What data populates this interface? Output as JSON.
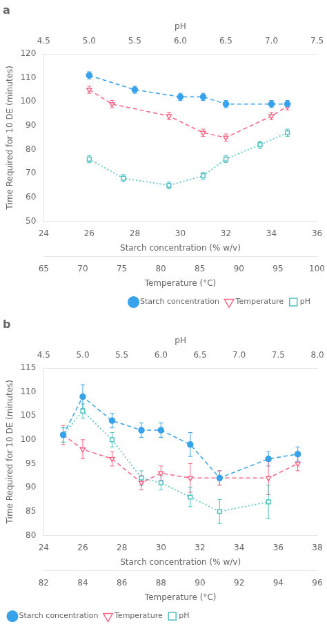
{
  "chart_data": [
    {
      "type": "line",
      "title": "a",
      "xlabel": "Starch concentration (% w/v)",
      "xlim": [
        24,
        36
      ],
      "xticks": [
        24,
        26,
        28,
        30,
        32,
        34,
        36
      ],
      "x2label": "pH",
      "x2lim": [
        4.5,
        7.5
      ],
      "x2ticks": [
        4.5,
        {
          "value": 5.0,
          "label": "5.0"
        },
        5.5,
        {
          "value": 6.0,
          "label": "6.0"
        },
        6.5,
        {
          "value": 7.0,
          "label": "7.0"
        },
        7.5
      ],
      "x3label": "Temperature (°C)",
      "x3lim": [
        65,
        100
      ],
      "x3ticks": [
        65,
        70,
        75,
        80,
        85,
        90,
        95,
        100
      ],
      "ylabel": "Time Required for 10 DE (minutes)",
      "ylim": [
        50,
        120
      ],
      "yticks": [
        50,
        60,
        70,
        80,
        90,
        100,
        110,
        120
      ],
      "grid": false,
      "legend": "lower right",
      "series": [
        {
          "name": "Starch concentration",
          "marker": "circle",
          "line_style": "dashed",
          "x": [
            26.0,
            28.0,
            30.0,
            31.0,
            32.0,
            34.0,
            34.7
          ],
          "values": [
            111,
            105,
            102,
            102,
            99,
            99,
            99
          ],
          "error": [
            1.5,
            1.5,
            1.5,
            1.5,
            1.5,
            1.5,
            1.5
          ]
        },
        {
          "name": "Temperature",
          "marker": "triangle-down-open",
          "line_style": "dashed",
          "x": [
            26.0,
            27.0,
            29.5,
            31.0,
            32.0,
            34.0,
            34.7
          ],
          "values": [
            105,
            99,
            94,
            87,
            85,
            94,
            98
          ],
          "error": [
            1.5,
            1.5,
            1.5,
            1.5,
            1.5,
            1.5,
            1.5
          ]
        },
        {
          "name": "pH",
          "marker": "square-open",
          "line_style": "dotted",
          "x": [
            26.0,
            27.5,
            29.5,
            31.0,
            32.0,
            33.5,
            34.7
          ],
          "values": [
            76,
            68,
            65,
            69,
            76,
            82,
            87
          ],
          "error": [
            1.5,
            1.5,
            1.5,
            1.5,
            1.5,
            1.5,
            1.5
          ]
        }
      ]
    },
    {
      "type": "line",
      "title": "b",
      "xlabel": "Starch concentration (% w/v)",
      "xlim": [
        24,
        38
      ],
      "xticks": [
        24,
        26,
        28,
        30,
        32,
        34,
        36,
        38
      ],
      "x2label": "pH",
      "x2lim": [
        4.5,
        8.0
      ],
      "x2ticks": [
        4.5,
        {
          "value": 5.0,
          "label": "5.0"
        },
        5.5,
        {
          "value": 6.0,
          "label": "6.0"
        },
        6.5,
        {
          "value": 7.0,
          "label": "7.0"
        },
        7.5,
        {
          "value": 8.0,
          "label": "8.0"
        }
      ],
      "x3label": "Temperature (°C)",
      "x3lim": [
        82,
        96
      ],
      "x3ticks": [
        82,
        84,
        86,
        88,
        90,
        92,
        94,
        96
      ],
      "ylabel": "Time Required for 10 DE (minutes)",
      "ylim": [
        80,
        115
      ],
      "yticks": [
        80,
        85,
        90,
        95,
        100,
        105,
        110,
        115
      ],
      "grid": false,
      "legend": "lower left",
      "series": [
        {
          "name": "Starch concentration",
          "marker": "circle",
          "line_style": "dashed",
          "x": [
            25.0,
            26.0,
            27.5,
            29.0,
            30.0,
            31.5,
            33.0,
            35.5,
            37.0
          ],
          "values": [
            101,
            109,
            104,
            102,
            102,
            99,
            92,
            96,
            97
          ],
          "error": [
            1.5,
            2.5,
            1.5,
            1.5,
            1.5,
            2.5,
            1.5,
            1.5,
            1.5
          ]
        },
        {
          "name": "Temperature",
          "marker": "triangle-down-open",
          "line_style": "dashed",
          "x": [
            25.0,
            26.0,
            27.5,
            29.0,
            30.0,
            31.5,
            33.0,
            35.5,
            37.0
          ],
          "values": [
            101,
            98,
            96,
            91,
            93,
            92,
            92,
            92,
            95
          ],
          "error": [
            2.0,
            2.0,
            1.5,
            1.5,
            1.5,
            3.0,
            1.5,
            3.5,
            1.5
          ]
        },
        {
          "name": "pH",
          "marker": "square-open",
          "line_style": "dotted",
          "x": [
            25.0,
            26.0,
            27.5,
            29.0,
            30.0,
            31.5,
            33.0,
            35.5
          ],
          "values": [
            101,
            106,
            100,
            92,
            91,
            88,
            85,
            87
          ],
          "error": [
            1.5,
            1.5,
            1.5,
            1.5,
            1.5,
            2.0,
            2.5,
            3.5
          ]
        }
      ]
    }
  ]
}
